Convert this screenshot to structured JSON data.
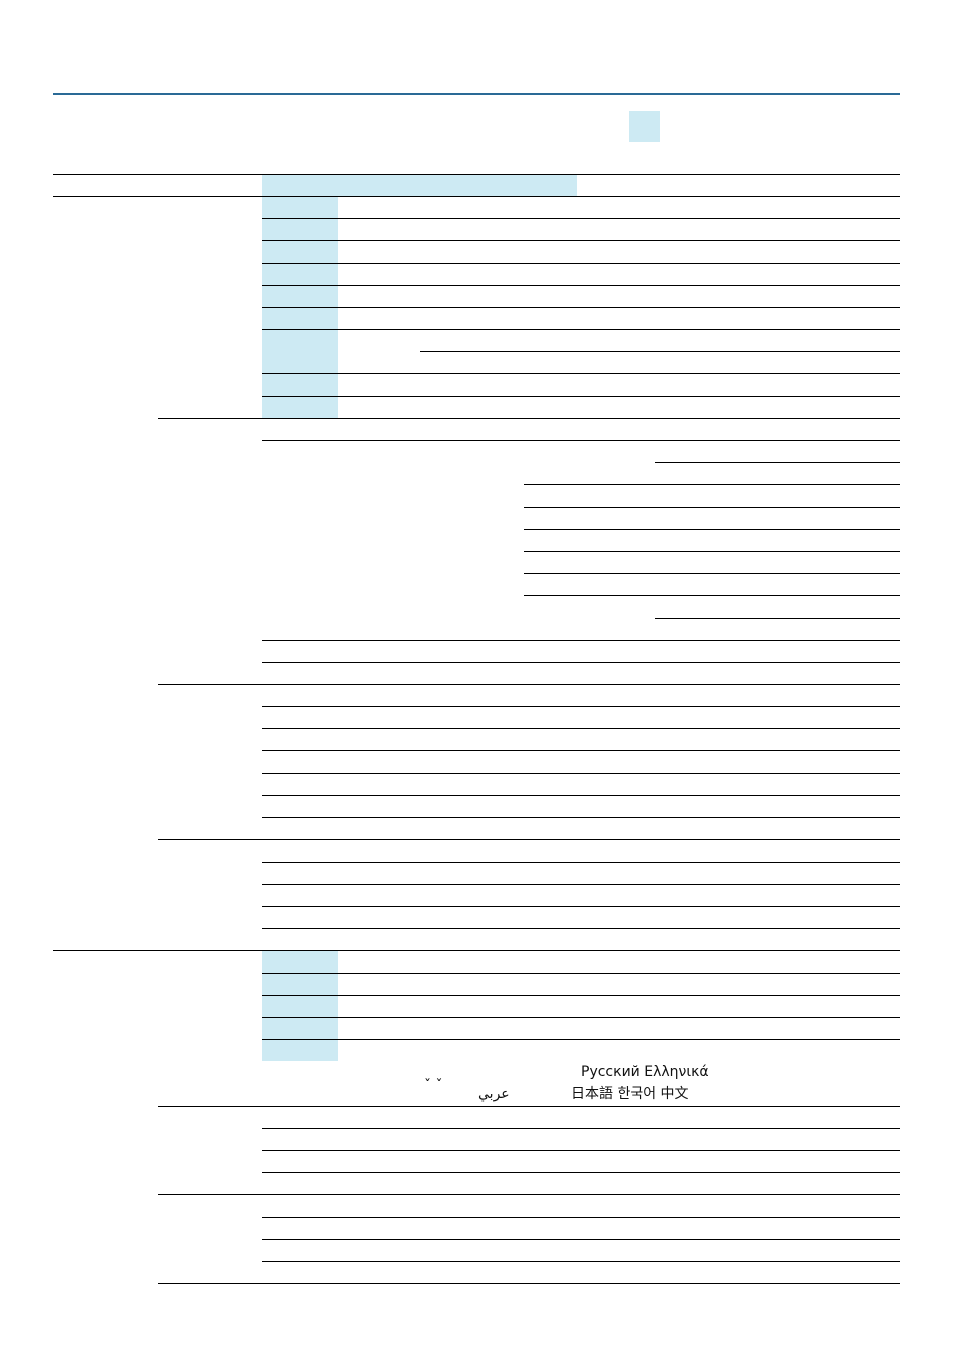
{
  "language_samples": {
    "marks": "ˇ ˇ",
    "arabic": "عربي",
    "line1": "Русский Ελληνικά",
    "line2": "日本語 한국어 中文"
  }
}
